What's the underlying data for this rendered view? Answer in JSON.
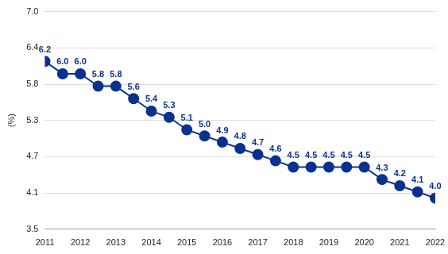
{
  "chart_data": {
    "type": "line",
    "y_label": "(%)",
    "categories": [
      "2011",
      null,
      "2012",
      null,
      "2013",
      null,
      "2014",
      null,
      "2015",
      null,
      "2016",
      null,
      "2017",
      null,
      "2018",
      null,
      "2019",
      null,
      "2020",
      null,
      "2021",
      null,
      "2022"
    ],
    "values": [
      6.2,
      6.0,
      6.0,
      5.8,
      5.8,
      5.6,
      5.4,
      5.3,
      5.1,
      5.0,
      4.9,
      4.8,
      4.7,
      4.6,
      4.5,
      4.5,
      4.5,
      4.5,
      4.5,
      4.3,
      4.2,
      4.1,
      4.0
    ],
    "value_labels": [
      "6.2",
      "6.0",
      "6.0",
      "5.8",
      "5.8",
      "5.6",
      "5.4",
      "5.3",
      "5.1",
      "5.0",
      "4.9",
      "4.8",
      "4.7",
      "4.6",
      "4.5",
      "4.5",
      "4.5",
      "4.5",
      "4.5",
      "4.3",
      "4.2",
      "4.1",
      "4.0"
    ],
    "color": "#0b318f",
    "marker": "circle",
    "line_style": "solid",
    "data_labels": true,
    "grid": true,
    "ylim": [
      3.5,
      7.0
    ],
    "yticks": [
      3.5,
      {
        "value": 4.0833,
        "label": "4.1"
      },
      {
        "value": 4.6667,
        "label": "4.7"
      },
      {
        "value": 5.25,
        "label": "5.3"
      },
      {
        "value": 5.8333,
        "label": "5.8"
      },
      {
        "value": 6.4167,
        "label": "6.4"
      },
      {
        "value": 7.0,
        "label": "7.0"
      }
    ]
  }
}
